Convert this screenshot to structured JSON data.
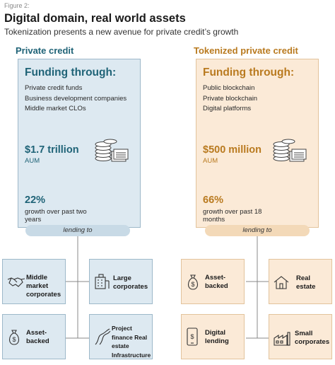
{
  "figure_label": "Figure 2:",
  "title": "Digital domain, real world assets",
  "subtitle": "Tokenization presents a new avenue for private credit’s growth",
  "private_credit": {
    "heading": "Private credit",
    "funding_title": "Funding through:",
    "sources": [
      "Private credit funds",
      "Business development companies",
      "Middle market CLOs"
    ],
    "amount": "$1.7 trillion",
    "amount_unit": "AUM",
    "growth_pct": "22%",
    "growth_desc": "growth over past two years",
    "lending_label": "lending to",
    "accent": "#1f6377",
    "fill": "#dde9f1",
    "targets": [
      {
        "label": "Middle market corporates",
        "icon": "handshake-icon"
      },
      {
        "label": "Large corporates",
        "icon": "office-building-icon"
      },
      {
        "label": "Asset-backed",
        "icon": "money-bag-icon"
      },
      {
        "label": "Project finance Real estate Infrastructure",
        "icon": "road-icon"
      }
    ]
  },
  "tokenized_private_credit": {
    "heading": "Tokenized private credit",
    "funding_title": "Funding through:",
    "sources": [
      "Public blockchain",
      "Private blockchain",
      "Digital platforms"
    ],
    "amount": "$500 million",
    "amount_unit": "AUM",
    "growth_pct": "66%",
    "growth_desc": "growth over past 18 months",
    "lending_label": "lending to",
    "accent": "#b97a1f",
    "fill": "#fbead7",
    "targets": [
      {
        "label": "Asset-backed",
        "icon": "money-bag-icon"
      },
      {
        "label": "Real estate",
        "icon": "house-icon"
      },
      {
        "label": "Digital lending",
        "icon": "mobile-phone-icon"
      },
      {
        "label": "Small corporates",
        "icon": "small-factory-icon"
      }
    ]
  }
}
